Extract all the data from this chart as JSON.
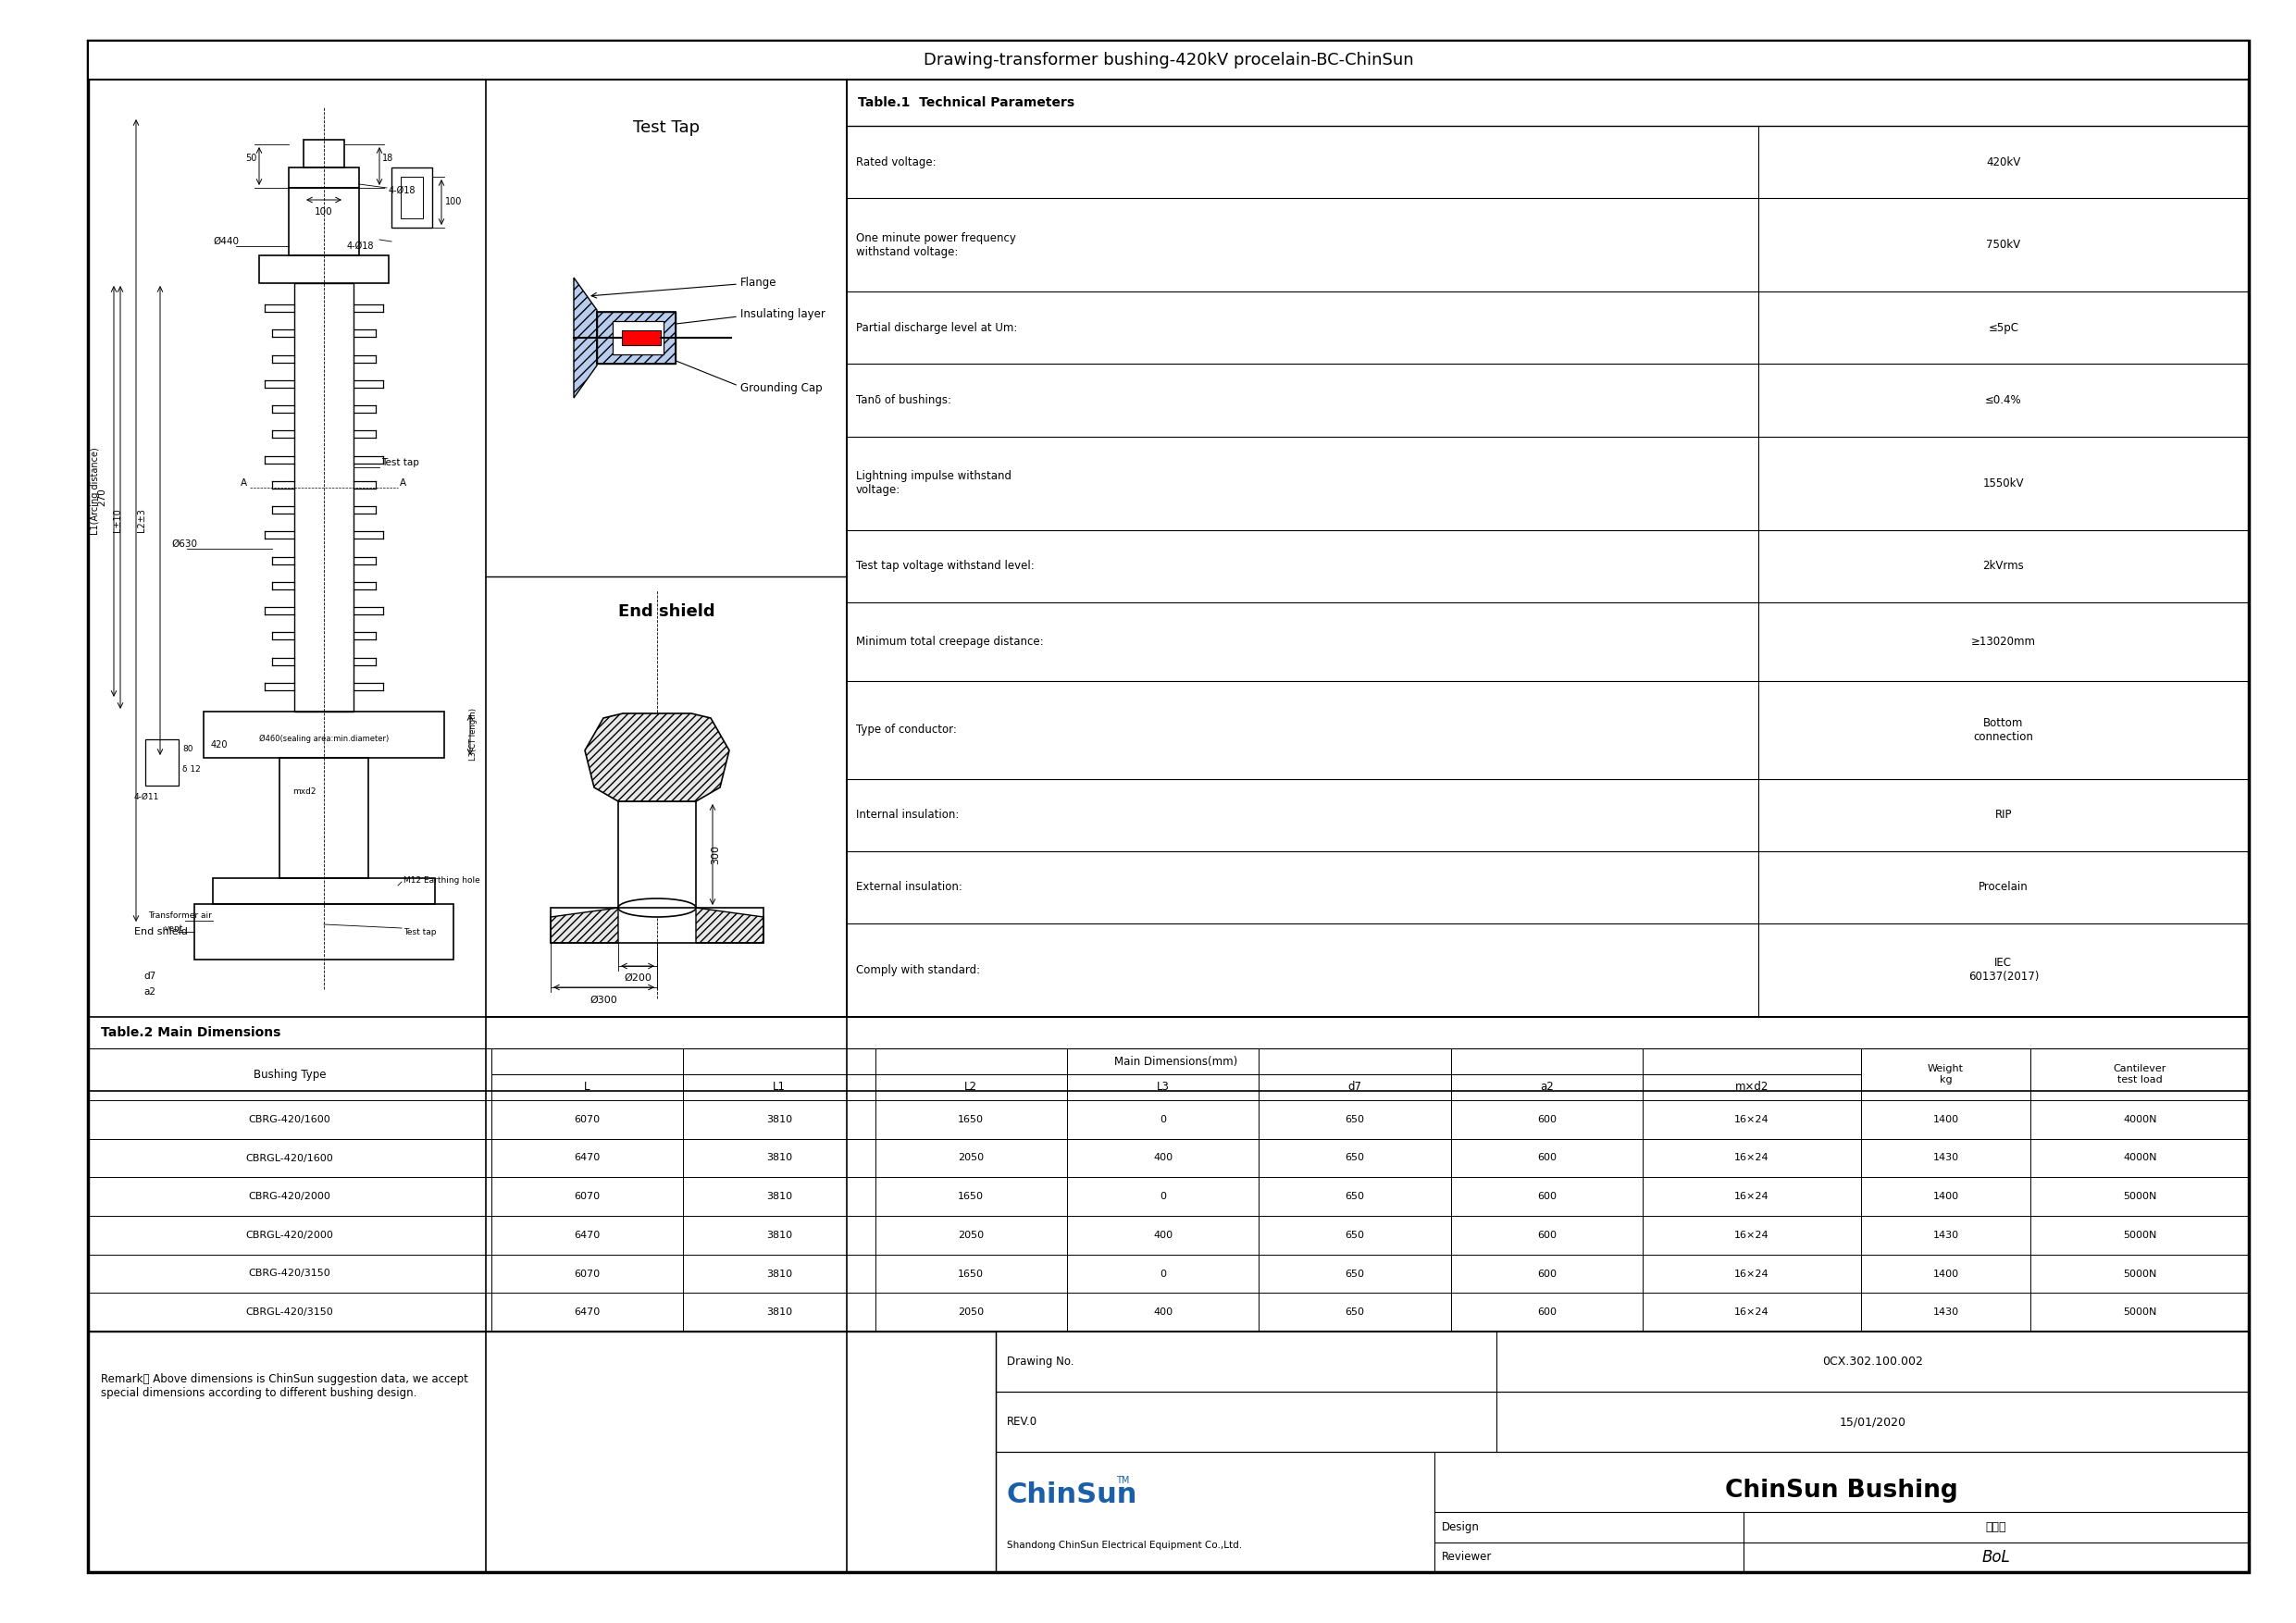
{
  "title": "Drawing-transformer bushing-420kV procelain-BC-ChinSun",
  "border_color": "#000000",
  "background": "#ffffff",
  "table1_title": "Table.1  Technical Parameters",
  "table1_rows": [
    [
      "Rated voltage:",
      "420kV"
    ],
    [
      "One minute power frequency\nwithstand voltage:",
      "750kV"
    ],
    [
      "Partial discharge level at Um:",
      "≤5pC"
    ],
    [
      "Tanδ of bushings:",
      "≤0.4%"
    ],
    [
      "Lightning impulse withstand\nvoltage:",
      "1550kV"
    ],
    [
      "Test tap voltage withstand level:",
      "2kVrms"
    ],
    [
      "Minimum total creepage distance:",
      "≥13020mm"
    ],
    [
      "Type of conductor:",
      "Bottom\nconnection"
    ],
    [
      "Internal insulation:",
      "RIP"
    ],
    [
      "External insulation:",
      "Procelain"
    ],
    [
      "Comply with standard:",
      "IEC\n60137(2017)"
    ]
  ],
  "table2_title": "Table.2 Main Dimensions",
  "dim_col_names": [
    "L",
    "L1",
    "L2",
    "L3",
    "d7",
    "a2",
    "m×d2"
  ],
  "table2_rows": [
    [
      "CBRG-420/1600",
      "6070",
      "3810",
      "1650",
      "0",
      "650",
      "600",
      "16×24",
      "1400",
      "4000N"
    ],
    [
      "CBRGL-420/1600",
      "6470",
      "3810",
      "2050",
      "400",
      "650",
      "600",
      "16×24",
      "1430",
      "4000N"
    ],
    [
      "CBRG-420/2000",
      "6070",
      "3810",
      "1650",
      "0",
      "650",
      "600",
      "16×24",
      "1400",
      "5000N"
    ],
    [
      "CBRGL-420/2000",
      "6470",
      "3810",
      "2050",
      "400",
      "650",
      "600",
      "16×24",
      "1430",
      "5000N"
    ],
    [
      "CBRG-420/3150",
      "6070",
      "3810",
      "1650",
      "0",
      "650",
      "600",
      "16×24",
      "1400",
      "5000N"
    ],
    [
      "CBRGL-420/3150",
      "6470",
      "3810",
      "2050",
      "400",
      "650",
      "600",
      "16×24",
      "1430",
      "5000N"
    ]
  ],
  "remark": "Remark： Above dimensions is ChinSun suggestion data, we accept\nspecial dimensions according to different bushing design.",
  "drawing_no_label": "Drawing No.",
  "drawing_no": "0CX.302.100.002",
  "rev_label": "REV.0",
  "rev_date": "15/01/2020",
  "design_label": "Design",
  "design_value": "孔宪波",
  "reviewer_label": "Reviewer",
  "reviewer_value": "BoL",
  "company_name": "ChinSun Bushing",
  "company_sub": "Shandong ChinSun Electrical Equipment Co.,Ltd.",
  "test_tap_title": "Test Tap",
  "end_shield_title": "End shield",
  "main_dims_label": "Main Dimensions(mm)",
  "chinsun_color": "#1a5fa8"
}
